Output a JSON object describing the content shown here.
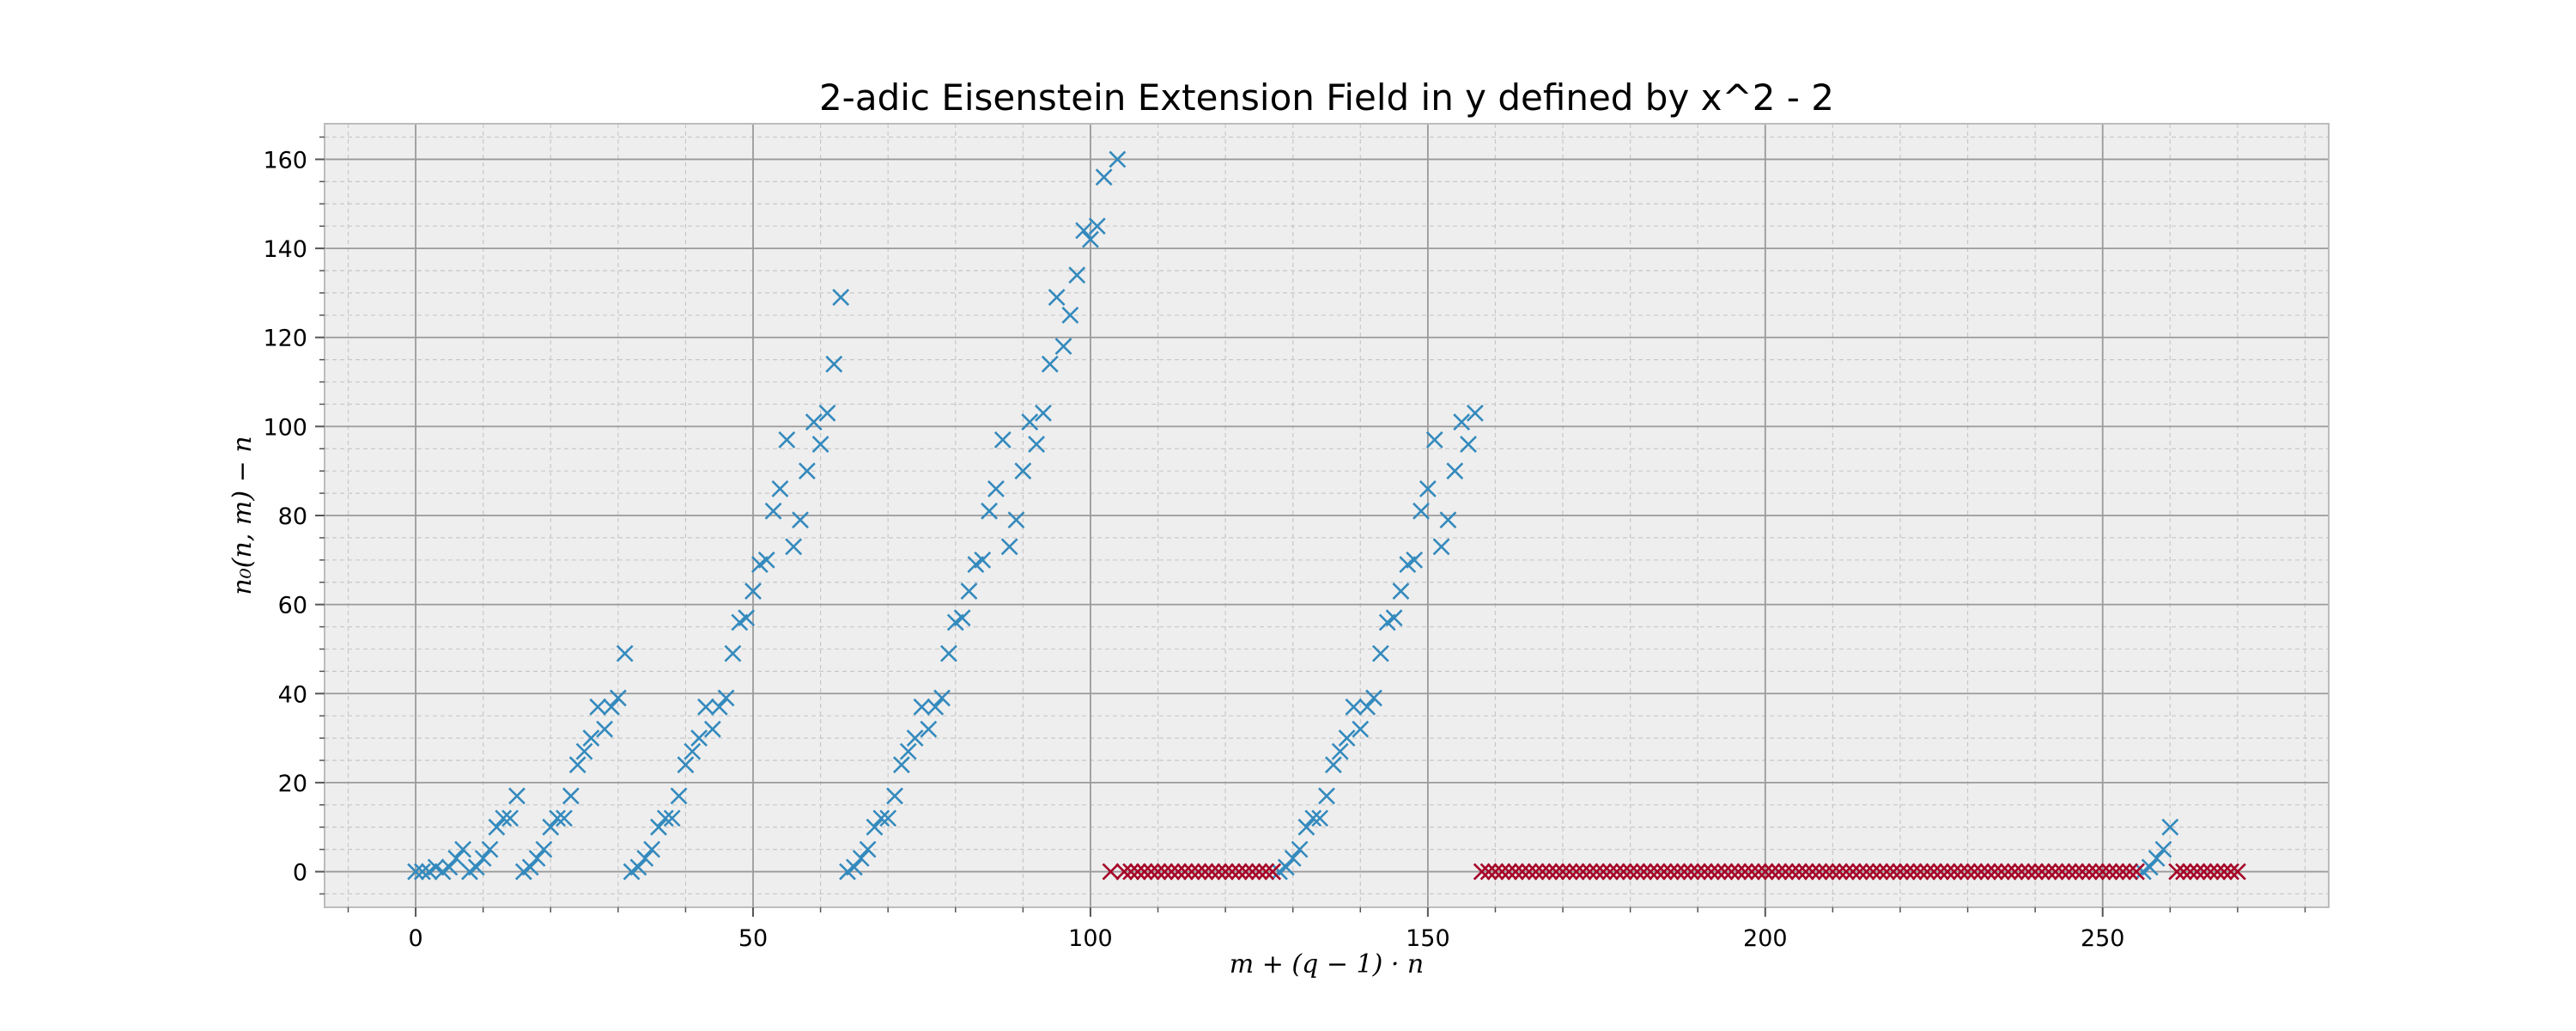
{
  "chart_data": {
    "type": "scatter",
    "title": "2-adic Eisenstein Extension Field in y defined by x^2 - 2",
    "xlabel": "m + (q − 1) · n",
    "ylabel": "n₀(n, m) − n",
    "xlim": [
      -13.5,
      283.5
    ],
    "ylim": [
      -8,
      168
    ],
    "xticks": [
      0,
      50,
      100,
      150,
      200,
      250
    ],
    "yticks": [
      0,
      20,
      40,
      60,
      80,
      100,
      120,
      140,
      160
    ],
    "grid": true,
    "marker": "x",
    "series": [
      {
        "color": "#348abd",
        "points": [
          [
            0,
            0
          ],
          [
            1,
            0
          ],
          [
            2,
            0
          ],
          [
            3,
            1
          ],
          [
            4,
            0
          ],
          [
            5,
            1
          ],
          [
            6,
            3
          ],
          [
            7,
            5
          ],
          [
            8,
            0
          ],
          [
            9,
            1
          ],
          [
            10,
            3
          ],
          [
            11,
            5
          ],
          [
            12,
            10
          ],
          [
            13,
            12
          ],
          [
            14,
            12
          ],
          [
            15,
            17
          ],
          [
            16,
            0
          ],
          [
            17,
            1
          ],
          [
            18,
            3
          ],
          [
            19,
            5
          ],
          [
            20,
            10
          ],
          [
            21,
            12
          ],
          [
            22,
            12
          ],
          [
            23,
            17
          ],
          [
            24,
            24
          ],
          [
            25,
            27
          ],
          [
            26,
            30
          ],
          [
            27,
            37
          ],
          [
            28,
            32
          ],
          [
            29,
            37
          ],
          [
            30,
            39
          ],
          [
            31,
            49
          ],
          [
            32,
            0
          ],
          [
            33,
            1
          ],
          [
            34,
            3
          ],
          [
            35,
            5
          ],
          [
            36,
            10
          ],
          [
            37,
            12
          ],
          [
            38,
            12
          ],
          [
            39,
            17
          ],
          [
            40,
            24
          ],
          [
            41,
            27
          ],
          [
            42,
            30
          ],
          [
            43,
            37
          ],
          [
            44,
            32
          ],
          [
            45,
            37
          ],
          [
            46,
            39
          ],
          [
            47,
            49
          ],
          [
            48,
            56
          ],
          [
            49,
            57
          ],
          [
            50,
            63
          ],
          [
            51,
            69
          ],
          [
            52,
            70
          ],
          [
            53,
            81
          ],
          [
            54,
            86
          ],
          [
            55,
            97
          ],
          [
            56,
            73
          ],
          [
            57,
            79
          ],
          [
            58,
            90
          ],
          [
            59,
            101
          ],
          [
            60,
            96
          ],
          [
            61,
            103
          ],
          [
            62,
            114
          ],
          [
            63,
            129
          ],
          [
            64,
            0
          ],
          [
            65,
            1
          ],
          [
            66,
            3
          ],
          [
            67,
            5
          ],
          [
            68,
            10
          ],
          [
            69,
            12
          ],
          [
            70,
            12
          ],
          [
            71,
            17
          ],
          [
            72,
            24
          ],
          [
            73,
            27
          ],
          [
            74,
            30
          ],
          [
            75,
            37
          ],
          [
            76,
            32
          ],
          [
            77,
            37
          ],
          [
            78,
            39
          ],
          [
            79,
            49
          ],
          [
            80,
            56
          ],
          [
            81,
            57
          ],
          [
            82,
            63
          ],
          [
            83,
            69
          ],
          [
            84,
            70
          ],
          [
            85,
            81
          ],
          [
            86,
            86
          ],
          [
            87,
            97
          ],
          [
            88,
            73
          ],
          [
            89,
            79
          ],
          [
            90,
            90
          ],
          [
            91,
            101
          ],
          [
            92,
            96
          ],
          [
            93,
            103
          ],
          [
            94,
            114
          ],
          [
            95,
            129
          ],
          [
            96,
            118
          ],
          [
            97,
            125
          ],
          [
            98,
            134
          ],
          [
            99,
            144
          ],
          [
            100,
            142
          ],
          [
            101,
            145
          ],
          [
            102,
            156
          ],
          [
            104,
            160
          ],
          [
            128,
            0
          ],
          [
            129,
            1
          ],
          [
            130,
            3
          ],
          [
            131,
            5
          ],
          [
            132,
            10
          ],
          [
            133,
            12
          ],
          [
            134,
            12
          ],
          [
            135,
            17
          ],
          [
            136,
            24
          ],
          [
            137,
            27
          ],
          [
            138,
            30
          ],
          [
            139,
            37
          ],
          [
            140,
            32
          ],
          [
            141,
            37
          ],
          [
            142,
            39
          ],
          [
            143,
            49
          ],
          [
            144,
            56
          ],
          [
            145,
            57
          ],
          [
            146,
            63
          ],
          [
            147,
            69
          ],
          [
            148,
            70
          ],
          [
            149,
            81
          ],
          [
            150,
            86
          ],
          [
            151,
            97
          ],
          [
            152,
            73
          ],
          [
            153,
            79
          ],
          [
            154,
            90
          ],
          [
            155,
            101
          ],
          [
            156,
            96
          ],
          [
            157,
            103
          ],
          [
            256,
            0
          ],
          [
            257,
            1
          ],
          [
            258,
            3
          ],
          [
            259,
            5
          ],
          [
            260,
            10
          ]
        ]
      },
      {
        "color": "#a60628",
        "constant_y": 0,
        "x_ranges": [
          [
            103,
            103
          ],
          [
            105,
            127
          ],
          [
            158,
            255
          ],
          [
            261,
            270
          ]
        ]
      }
    ]
  }
}
